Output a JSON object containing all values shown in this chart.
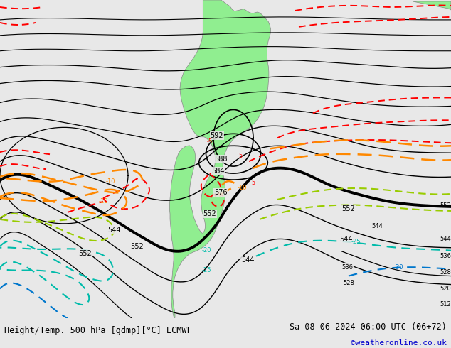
{
  "title_left": "Height/Temp. 500 hPa [gdmp][°C] ECMWF",
  "title_right": "Sa 08-06-2024 06:00 UTC (06+72)",
  "copyright": "©weatheronline.co.uk",
  "bg_color": "#e8e8e8",
  "land_color": "#90EE90",
  "land_edge": "#888888",
  "copyright_color": "#0000cc"
}
